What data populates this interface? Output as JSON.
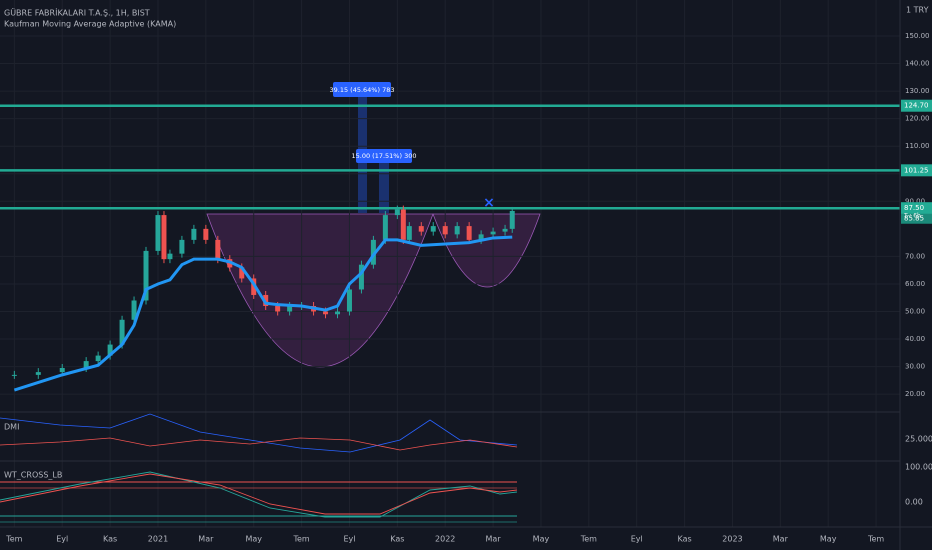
{
  "header": {
    "symbol": "GÜBRE FABRİKALARI T.A.Ş., 1H, BIST",
    "indicator": "Kaufman Moving Average Adaptive (KAMA)",
    "currency": "1 TRY"
  },
  "chart_data": {
    "type": "candlestick",
    "x": [
      0,
      1,
      2,
      3,
      3.5,
      4,
      4.5,
      5,
      5.5,
      6,
      6.25,
      6.5,
      7,
      7.5,
      8,
      8.5,
      9,
      9.5,
      10,
      10.5,
      11,
      11.5,
      12,
      12.5,
      13,
      13.5,
      14,
      14.5,
      15,
      15.5,
      16,
      16.25,
      16.5,
      17,
      17.5,
      18,
      18.5,
      19,
      19.5,
      20,
      20.5,
      20.8
    ],
    "series": [
      {
        "name": "close",
        "color": "#26a69a",
        "down_color": "#ef5350",
        "values": [
          27,
          28,
          29.5,
          32,
          34,
          38,
          47,
          54,
          72,
          85,
          69,
          71,
          76,
          80,
          76,
          69,
          66,
          62,
          56,
          52,
          50,
          52,
          52,
          50,
          49,
          50,
          58,
          67,
          76,
          85,
          87,
          76,
          81,
          79,
          81,
          78,
          81,
          76,
          78,
          79,
          80,
          86.5
        ]
      },
      {
        "name": "KAMA",
        "color": "#2196f3",
        "x": [
          0,
          2,
          3.5,
          4.5,
          5,
          5.5,
          6,
          6.5,
          7,
          7.5,
          8.5,
          9,
          9.5,
          10,
          10.5,
          11,
          12,
          13,
          13.5,
          14,
          14.5,
          15,
          15.5,
          16,
          17,
          18,
          19,
          20,
          20.8
        ],
        "values": [
          21.5,
          27,
          30.5,
          38,
          45,
          58,
          60,
          61.5,
          67,
          69,
          69,
          68,
          66,
          60,
          53,
          52.5,
          52,
          50.5,
          52,
          60,
          64,
          70.5,
          76,
          76,
          74,
          74.5,
          75,
          76.7,
          77
        ]
      }
    ],
    "xlim": [
      -0.6,
      37
    ],
    "xticks": [
      {
        "value": 0,
        "label": "Tem"
      },
      {
        "value": 2,
        "label": "Eyl"
      },
      {
        "value": 4,
        "label": "Kas"
      },
      {
        "value": 6,
        "label": "2021"
      },
      {
        "value": 8,
        "label": "Mar"
      },
      {
        "value": 10,
        "label": "May"
      },
      {
        "value": 12,
        "label": "Tem"
      },
      {
        "value": 14,
        "label": "Eyl"
      },
      {
        "value": 16,
        "label": "Kas"
      },
      {
        "value": 18,
        "label": "2022"
      },
      {
        "value": 20,
        "label": "Mar"
      },
      {
        "value": 22,
        "label": "May"
      },
      {
        "value": 24,
        "label": "Tem"
      },
      {
        "value": 26,
        "label": "Eyl"
      },
      {
        "value": 28,
        "label": "Kas"
      },
      {
        "value": 30,
        "label": "2023"
      },
      {
        "value": 32,
        "label": "Mar"
      },
      {
        "value": 34,
        "label": "May"
      },
      {
        "value": 36,
        "label": "Tem"
      }
    ],
    "ylim": [
      14.25,
      163.07
    ],
    "yticks": [
      {
        "value": 150,
        "label": "150.00"
      },
      {
        "value": 140,
        "label": "140.00"
      },
      {
        "value": 130,
        "label": "130.00"
      },
      {
        "value": 120,
        "label": "120.00"
      },
      {
        "value": 110,
        "label": "110.00"
      },
      {
        "value": 100,
        "label": "100.00"
      },
      {
        "value": 90,
        "label": "90.00"
      },
      {
        "value": 70,
        "label": "70.00"
      },
      {
        "value": 60,
        "label": "60.00"
      },
      {
        "value": 50,
        "label": "50.00"
      },
      {
        "value": 40,
        "label": "40.00"
      },
      {
        "value": 30,
        "label": "30.00"
      },
      {
        "value": 20,
        "label": "20.00"
      }
    ],
    "levels": [
      {
        "value": 124.7,
        "label": "124.70"
      },
      {
        "value": 101.25,
        "label": "101.25"
      },
      {
        "value": 87.5,
        "label": "87.50"
      }
    ],
    "price_tags": [
      {
        "value": 85.85,
        "label": "85.85"
      }
    ],
    "countdown": "T-: 6h",
    "measurements": [
      "39.15 (45.64%) 783",
      "15.00 (17.51%) 300"
    ],
    "panes": {
      "dmi": {
        "title": "DMI",
        "tick": "25.0000"
      },
      "wt": {
        "title": "WT_CROSS_LB",
        "ticks": [
          "100.00",
          "0.00"
        ]
      }
    }
  }
}
